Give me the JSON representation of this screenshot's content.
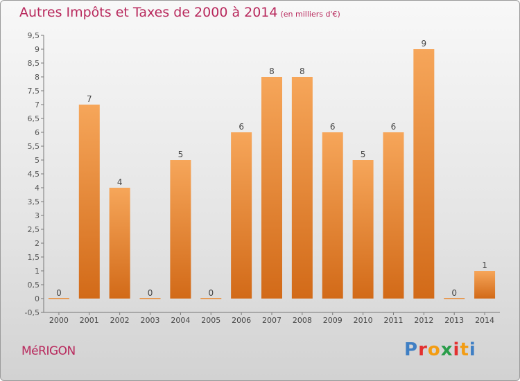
{
  "header": {
    "title": "Autres Impôts et Taxes de 2000 à 2014",
    "subtitle": "(en milliers d'€)"
  },
  "footer": {
    "commune": "MéRIGON",
    "brand": "Proxiti",
    "brand_colors": [
      "#3f7fc4",
      "#e3302f",
      "#f39c12",
      "#2a9d4a",
      "#e3302f",
      "#f39c12",
      "#3f7fc4"
    ]
  },
  "chart_data": {
    "type": "bar",
    "title": "Autres Impôts et Taxes de 2000 à 2014",
    "subtitle": "(en milliers d'€)",
    "categories": [
      "2000",
      "2001",
      "2002",
      "2003",
      "2004",
      "2005",
      "2006",
      "2007",
      "2008",
      "2009",
      "2010",
      "2011",
      "2012",
      "2013",
      "2014"
    ],
    "values": [
      0,
      7,
      4,
      0,
      5,
      0,
      6,
      8,
      8,
      6,
      5,
      6,
      9,
      0,
      1
    ],
    "data_labels": [
      "0",
      "7",
      "4",
      "0",
      "5",
      "0",
      "6",
      "8",
      "8",
      "6",
      "5",
      "6",
      "9",
      "0",
      "1"
    ],
    "ylim": [
      -0.5,
      9.5
    ],
    "yticks": [
      "-0,5",
      "0",
      "0,5",
      "1",
      "1,5",
      "2",
      "2,5",
      "3",
      "3,5",
      "4",
      "4,5",
      "5",
      "5,5",
      "6",
      "6,5",
      "7",
      "7,5",
      "8",
      "8,5",
      "9",
      "9,5"
    ],
    "grid": false,
    "legend": "none",
    "bar_color": "#e9852a"
  }
}
